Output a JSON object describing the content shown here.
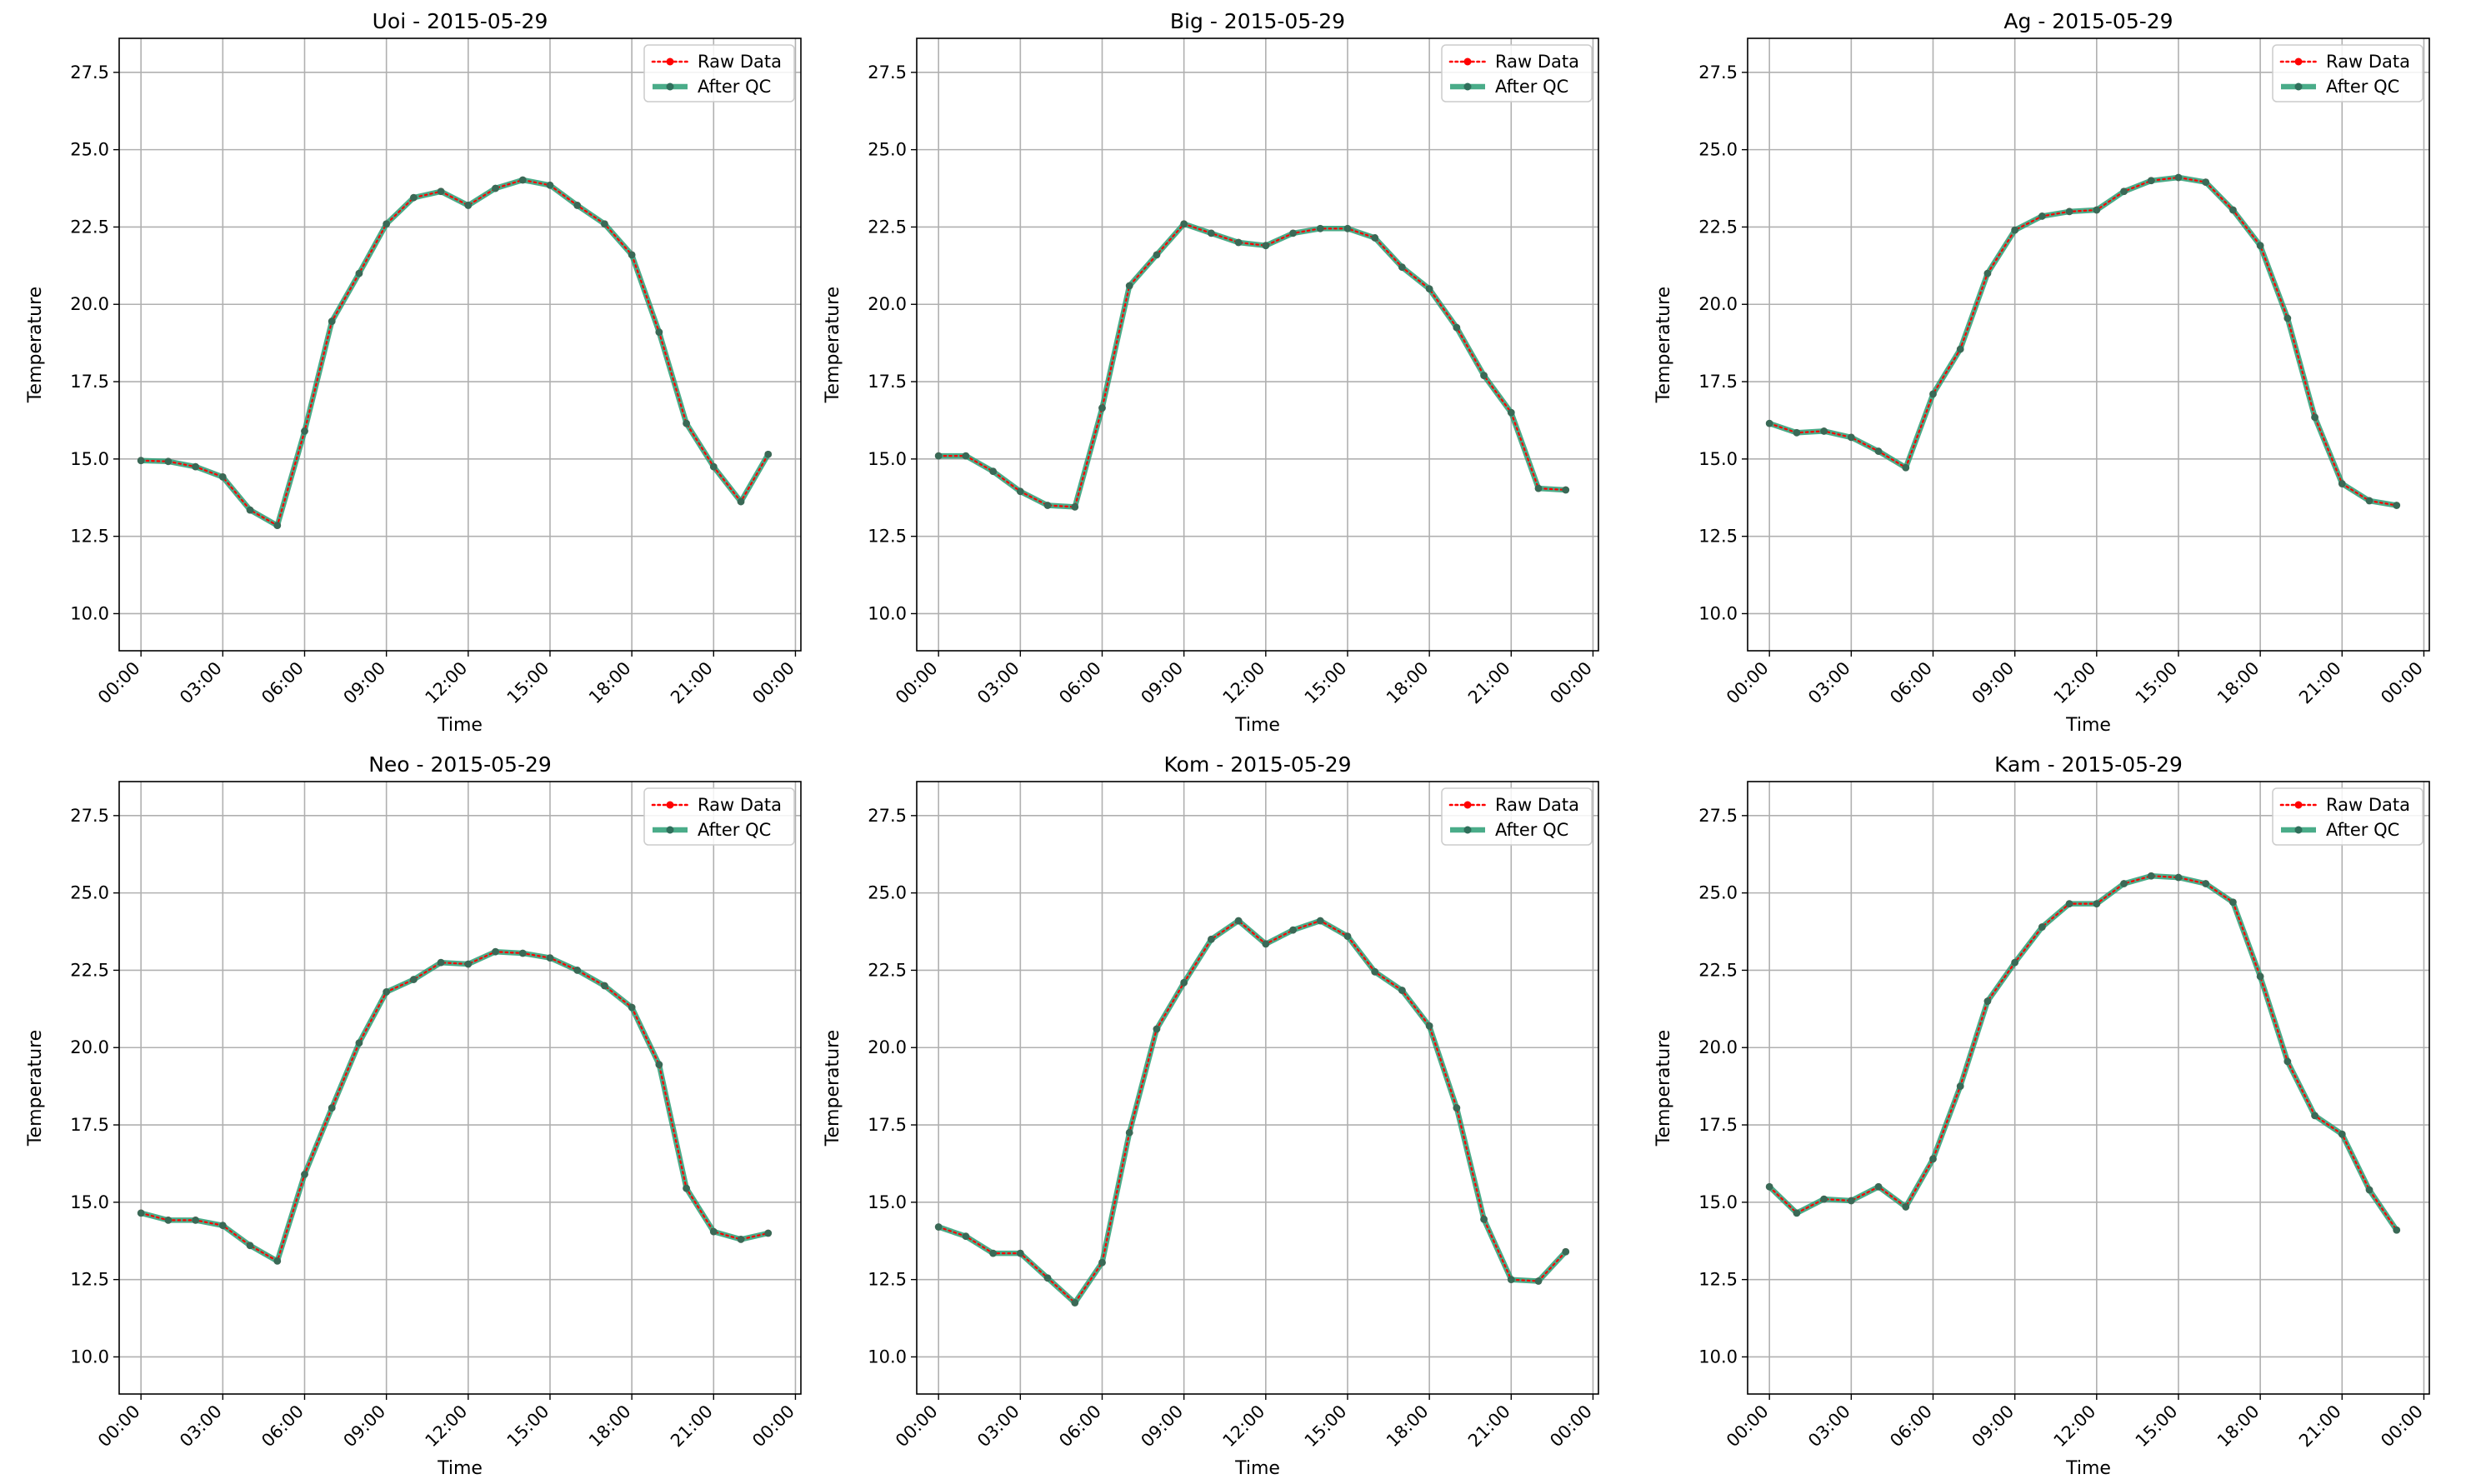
{
  "figure": {
    "xlabel": "Time",
    "ylabel": "Temperature",
    "legend": {
      "raw": "Raw Data",
      "qc": "After QC",
      "placement": "top-right"
    },
    "colors": {
      "raw": "#ff0000",
      "qc": "#2a9d74",
      "qc_marker": "#2f6f5b",
      "grid": "#b0b0b0"
    },
    "grid": true
  },
  "chart_data": [
    {
      "type": "line",
      "title": "Uoi - 2015-05-29",
      "xlabel": "Time",
      "ylabel": "Temperature",
      "x_ticks": [
        "00:00",
        "03:00",
        "06:00",
        "09:00",
        "12:00",
        "15:00",
        "18:00",
        "21:00",
        "00:00"
      ],
      "y_ticks": [
        "10.0",
        "12.5",
        "15.0",
        "17.5",
        "20.0",
        "22.5",
        "25.0",
        "27.5"
      ],
      "xlim": [
        -0.8,
        24.2
      ],
      "ylim": [
        8.8,
        28.6
      ],
      "x": [
        0,
        1,
        2,
        3,
        4,
        5,
        6,
        7,
        8,
        9,
        10,
        11,
        12,
        13,
        14,
        15,
        16,
        17,
        18,
        19,
        20,
        21,
        22,
        23
      ],
      "series": [
        {
          "name": "Raw Data",
          "values": [
            14.95,
            14.92,
            14.75,
            14.42,
            13.35,
            12.85,
            15.9,
            19.45,
            21.0,
            22.6,
            23.45,
            23.65,
            23.2,
            23.75,
            24.02,
            23.85,
            23.2,
            22.6,
            21.6,
            19.1,
            16.15,
            14.75,
            13.62,
            15.15
          ]
        },
        {
          "name": "After QC",
          "values": [
            14.95,
            14.92,
            14.75,
            14.42,
            13.35,
            12.85,
            15.9,
            19.45,
            21.0,
            22.6,
            23.45,
            23.65,
            23.2,
            23.75,
            24.02,
            23.85,
            23.2,
            22.6,
            21.6,
            19.1,
            16.15,
            14.75,
            13.62,
            15.15
          ]
        }
      ]
    },
    {
      "type": "line",
      "title": "Big - 2015-05-29",
      "xlabel": "Time",
      "ylabel": "Temperature",
      "x_ticks": [
        "00:00",
        "03:00",
        "06:00",
        "09:00",
        "12:00",
        "15:00",
        "18:00",
        "21:00",
        "00:00"
      ],
      "y_ticks": [
        "10.0",
        "12.5",
        "15.0",
        "17.5",
        "20.0",
        "22.5",
        "25.0",
        "27.5"
      ],
      "xlim": [
        -0.8,
        24.2
      ],
      "ylim": [
        8.8,
        28.6
      ],
      "x": [
        0,
        1,
        2,
        3,
        4,
        5,
        6,
        7,
        8,
        9,
        10,
        11,
        12,
        13,
        14,
        15,
        16,
        17,
        18,
        19,
        20,
        21,
        22,
        23
      ],
      "series": [
        {
          "name": "Raw Data",
          "values": [
            15.1,
            15.1,
            14.6,
            13.95,
            13.5,
            13.45,
            16.65,
            20.6,
            21.6,
            22.6,
            22.3,
            22.0,
            21.9,
            22.3,
            22.45,
            22.45,
            22.15,
            21.2,
            20.5,
            19.25,
            17.7,
            16.5,
            14.05,
            14.0
          ]
        },
        {
          "name": "After QC",
          "values": [
            15.1,
            15.1,
            14.6,
            13.95,
            13.5,
            13.45,
            16.65,
            20.6,
            21.6,
            22.6,
            22.3,
            22.0,
            21.9,
            22.3,
            22.45,
            22.45,
            22.15,
            21.2,
            20.5,
            19.25,
            17.7,
            16.5,
            14.05,
            14.0
          ]
        }
      ]
    },
    {
      "type": "line",
      "title": "Ag - 2015-05-29",
      "xlabel": "Time",
      "ylabel": "Temperature",
      "x_ticks": [
        "00:00",
        "03:00",
        "06:00",
        "09:00",
        "12:00",
        "15:00",
        "18:00",
        "21:00",
        "00:00"
      ],
      "y_ticks": [
        "10.0",
        "12.5",
        "15.0",
        "17.5",
        "20.0",
        "22.5",
        "25.0",
        "27.5"
      ],
      "xlim": [
        -0.8,
        24.2
      ],
      "ylim": [
        8.8,
        28.6
      ],
      "x": [
        0,
        1,
        2,
        3,
        4,
        5,
        6,
        7,
        8,
        9,
        10,
        11,
        12,
        13,
        14,
        15,
        16,
        17,
        18,
        19,
        20,
        21,
        22,
        23
      ],
      "series": [
        {
          "name": "Raw Data",
          "values": [
            16.15,
            15.85,
            15.9,
            15.7,
            15.25,
            14.72,
            17.1,
            18.55,
            21.0,
            22.4,
            22.85,
            23.0,
            23.05,
            23.65,
            24.0,
            24.1,
            23.95,
            23.05,
            21.9,
            19.55,
            16.35,
            14.2,
            13.65,
            13.5
          ]
        },
        {
          "name": "After QC",
          "values": [
            16.15,
            15.85,
            15.9,
            15.7,
            15.25,
            14.72,
            17.1,
            18.55,
            21.0,
            22.4,
            22.85,
            23.0,
            23.05,
            23.65,
            24.0,
            24.1,
            23.95,
            23.05,
            21.9,
            19.55,
            16.35,
            14.2,
            13.65,
            13.5
          ]
        }
      ]
    },
    {
      "type": "line",
      "title": "Neo - 2015-05-29",
      "xlabel": "Time",
      "ylabel": "Temperature",
      "x_ticks": [
        "00:00",
        "03:00",
        "06:00",
        "09:00",
        "12:00",
        "15:00",
        "18:00",
        "21:00",
        "00:00"
      ],
      "y_ticks": [
        "10.0",
        "12.5",
        "15.0",
        "17.5",
        "20.0",
        "22.5",
        "25.0",
        "27.5"
      ],
      "xlim": [
        -0.8,
        24.2
      ],
      "ylim": [
        8.8,
        28.6
      ],
      "x": [
        0,
        1,
        2,
        3,
        4,
        5,
        6,
        7,
        8,
        9,
        10,
        11,
        12,
        13,
        14,
        15,
        16,
        17,
        18,
        19,
        20,
        21,
        22,
        23
      ],
      "series": [
        {
          "name": "Raw Data",
          "values": [
            14.65,
            14.42,
            14.42,
            14.25,
            13.6,
            13.1,
            15.9,
            18.05,
            20.15,
            21.8,
            22.2,
            22.75,
            22.7,
            23.1,
            23.05,
            22.9,
            22.5,
            22.0,
            21.3,
            19.45,
            15.45,
            14.05,
            13.8,
            14.0
          ]
        },
        {
          "name": "After QC",
          "values": [
            14.65,
            14.42,
            14.42,
            14.25,
            13.6,
            13.1,
            15.9,
            18.05,
            20.15,
            21.8,
            22.2,
            22.75,
            22.7,
            23.1,
            23.05,
            22.9,
            22.5,
            22.0,
            21.3,
            19.45,
            15.45,
            14.05,
            13.8,
            14.0
          ]
        }
      ]
    },
    {
      "type": "line",
      "title": "Kom - 2015-05-29",
      "xlabel": "Time",
      "ylabel": "Temperature",
      "x_ticks": [
        "00:00",
        "03:00",
        "06:00",
        "09:00",
        "12:00",
        "15:00",
        "18:00",
        "21:00",
        "00:00"
      ],
      "y_ticks": [
        "10.0",
        "12.5",
        "15.0",
        "17.5",
        "20.0",
        "22.5",
        "25.0",
        "27.5"
      ],
      "xlim": [
        -0.8,
        24.2
      ],
      "ylim": [
        8.8,
        28.6
      ],
      "x": [
        0,
        1,
        2,
        3,
        4,
        5,
        6,
        7,
        8,
        9,
        10,
        11,
        12,
        13,
        14,
        15,
        16,
        17,
        18,
        19,
        20,
        21,
        22,
        23
      ],
      "series": [
        {
          "name": "Raw Data",
          "values": [
            14.2,
            13.9,
            13.35,
            13.35,
            12.55,
            11.75,
            13.05,
            17.25,
            20.6,
            22.1,
            23.5,
            24.1,
            23.35,
            23.8,
            24.1,
            23.6,
            22.45,
            21.85,
            20.7,
            18.05,
            14.45,
            12.5,
            12.45,
            13.4
          ]
        },
        {
          "name": "After QC",
          "values": [
            14.2,
            13.9,
            13.35,
            13.35,
            12.55,
            11.75,
            13.05,
            17.25,
            20.6,
            22.1,
            23.5,
            24.1,
            23.35,
            23.8,
            24.1,
            23.6,
            22.45,
            21.85,
            20.7,
            18.05,
            14.45,
            12.5,
            12.45,
            13.4
          ]
        }
      ]
    },
    {
      "type": "line",
      "title": "Kam - 2015-05-29",
      "xlabel": "Time",
      "ylabel": "Temperature",
      "x_ticks": [
        "00:00",
        "03:00",
        "06:00",
        "09:00",
        "12:00",
        "15:00",
        "18:00",
        "21:00",
        "00:00"
      ],
      "y_ticks": [
        "10.0",
        "12.5",
        "15.0",
        "17.5",
        "20.0",
        "22.5",
        "25.0",
        "27.5"
      ],
      "xlim": [
        -0.8,
        24.2
      ],
      "ylim": [
        8.8,
        28.6
      ],
      "x": [
        0,
        1,
        2,
        3,
        4,
        5,
        6,
        7,
        8,
        9,
        10,
        11,
        12,
        13,
        14,
        15,
        16,
        17,
        18,
        19,
        20,
        21,
        22,
        23
      ],
      "series": [
        {
          "name": "Raw Data",
          "values": [
            15.5,
            14.65,
            15.1,
            15.05,
            15.5,
            14.85,
            16.4,
            18.75,
            21.5,
            22.75,
            23.9,
            24.65,
            24.65,
            25.3,
            25.55,
            25.5,
            25.3,
            24.7,
            22.3,
            19.55,
            17.8,
            17.2,
            15.4,
            14.1
          ]
        },
        {
          "name": "After QC",
          "values": [
            15.5,
            14.65,
            15.1,
            15.05,
            15.5,
            14.85,
            16.4,
            18.75,
            21.5,
            22.75,
            23.9,
            24.65,
            24.65,
            25.3,
            25.55,
            25.5,
            25.3,
            24.7,
            22.3,
            19.55,
            17.8,
            17.2,
            15.4,
            14.1
          ]
        }
      ]
    }
  ]
}
